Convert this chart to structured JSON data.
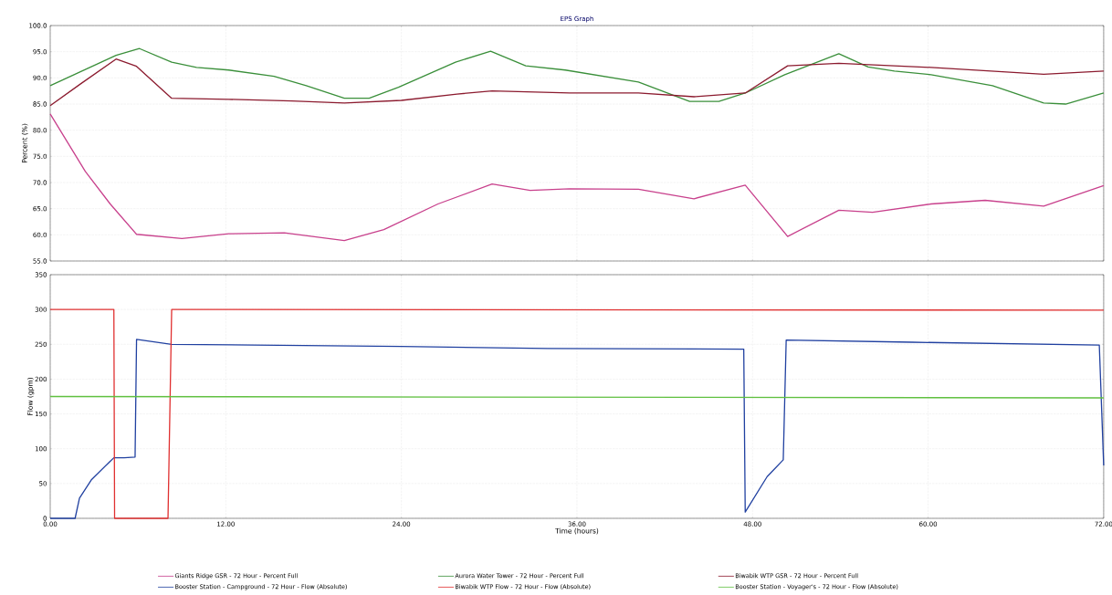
{
  "chart_data": [
    {
      "type": "line",
      "title": "EPS Graph",
      "ylabel": "Percent (%)",
      "xlim": [
        0,
        72
      ],
      "ylim": [
        55,
        100
      ],
      "grid": true,
      "legend": "bottom",
      "tick_labels": "y",
      "xticks": [
        0,
        12,
        24,
        36,
        48,
        60,
        72
      ],
      "yticks": [
        {
          "value": 55,
          "label": "55.0"
        },
        {
          "value": 60,
          "label": "60.0"
        },
        {
          "value": 65,
          "label": "65.0"
        },
        {
          "value": 70,
          "label": "70.0"
        },
        {
          "value": 75,
          "label": "75.0"
        },
        {
          "value": 80,
          "label": "80.0"
        },
        {
          "value": 85,
          "label": "85.0"
        },
        {
          "value": 90,
          "label": "90.0"
        },
        {
          "value": 95,
          "label": "95.0"
        },
        {
          "value": 100,
          "label": "100.0"
        }
      ],
      "series": [
        {
          "name": "Giants Ridge GSR - 72 Hour - Percent Full",
          "color": "#c8408c",
          "x": [
            0,
            2.4,
            4.1,
            5.9,
            9.0,
            12.2,
            16.0,
            20.1,
            22.8,
            26.5,
            30.2,
            32.8,
            35.5,
            40.2,
            44.0,
            47.5,
            50.4,
            53.9,
            56.2,
            60.2,
            63.9,
            67.9,
            72
          ],
          "values": [
            83.1,
            72.1,
            65.9,
            60.1,
            59.3,
            60.2,
            60.4,
            58.9,
            61.0,
            65.9,
            69.7,
            68.5,
            68.8,
            68.7,
            66.9,
            69.5,
            59.7,
            64.7,
            64.3,
            65.9,
            66.6,
            65.5,
            69.4
          ]
        },
        {
          "name": "Aurora Water Tower - 72 Hour - Percent Full",
          "color": "#3a8f3a",
          "x": [
            0,
            4.5,
            6.1,
            8.3,
            10.0,
            12.2,
            15.3,
            17.5,
            20.1,
            21.8,
            23.8,
            27.7,
            30.1,
            32.5,
            35.2,
            40.2,
            43.7,
            45.7,
            47.5,
            50.2,
            53.9,
            55.9,
            57.7,
            60.2,
            64.4,
            67.9,
            69.4,
            72
          ],
          "values": [
            88.5,
            94.3,
            95.6,
            93.0,
            92.0,
            91.5,
            90.3,
            88.5,
            86.1,
            86.1,
            88.2,
            93.0,
            95.1,
            92.3,
            91.5,
            89.2,
            85.5,
            85.5,
            87.1,
            90.6,
            94.6,
            92.1,
            91.3,
            90.6,
            88.5,
            85.2,
            85.0,
            87.1
          ]
        },
        {
          "name": "Biwabik WTP GSR - 72 Hour - Percent Full",
          "color": "#8b1a2e",
          "x": [
            0,
            2.1,
            4.5,
            5.9,
            8.3,
            12.2,
            16.5,
            20.1,
            24.0,
            27.8,
            30.2,
            35.5,
            40.2,
            44.0,
            47.5,
            50.4,
            53.9,
            60.2,
            67.9,
            72
          ],
          "values": [
            84.7,
            88.9,
            93.6,
            92.2,
            86.1,
            85.9,
            85.6,
            85.2,
            85.7,
            86.9,
            87.5,
            87.1,
            87.1,
            86.4,
            87.1,
            92.3,
            92.8,
            92.0,
            90.7,
            91.3
          ]
        }
      ]
    },
    {
      "type": "line",
      "ylabel": "Flow (gpm)",
      "xlabel": "Time (hours)",
      "xlim": [
        0,
        72
      ],
      "ylim": [
        0,
        350
      ],
      "grid": true,
      "legend": "bottom",
      "xticks": [
        {
          "value": 0,
          "label": "0.00"
        },
        {
          "value": 12,
          "label": "12.00"
        },
        {
          "value": 24,
          "label": "24.00"
        },
        {
          "value": 36,
          "label": "36.00"
        },
        {
          "value": 48,
          "label": "48.00"
        },
        {
          "value": 60,
          "label": "60.00"
        },
        {
          "value": 72,
          "label": "72.00"
        }
      ],
      "yticks": [
        0,
        50,
        100,
        150,
        200,
        250,
        300,
        350
      ],
      "series": [
        {
          "name": "Booster Station - Campground - 72 Hour - Flow (Absolute)",
          "color": "#2040a0",
          "x": [
            0,
            1.7,
            2.0,
            2.8,
            4.05,
            4.35,
            5.05,
            5.8,
            5.9,
            8.3,
            14.0,
            24.0,
            34.0,
            47.4,
            47.5,
            49.0,
            50.1,
            50.3,
            58.9,
            71.7,
            72
          ],
          "values": [
            0,
            0,
            29,
            55,
            81,
            87,
            87,
            88,
            257,
            250,
            249,
            247,
            244,
            243,
            9,
            60,
            84,
            256,
            253,
            249,
            76
          ]
        },
        {
          "name": "Biwabik WTP Flow - 72 Hour - Flow (Absolute)",
          "color": "#e03030",
          "x": [
            0,
            4.35,
            4.4,
            8.05,
            8.3,
            72
          ],
          "values": [
            300,
            300,
            0,
            0,
            300,
            299
          ]
        },
        {
          "name": "Booster Station - Voyager's - 72 Hour - Flow (Absolute)",
          "color": "#60c040",
          "x": [
            0,
            72
          ],
          "values": [
            175,
            173
          ]
        }
      ]
    }
  ]
}
